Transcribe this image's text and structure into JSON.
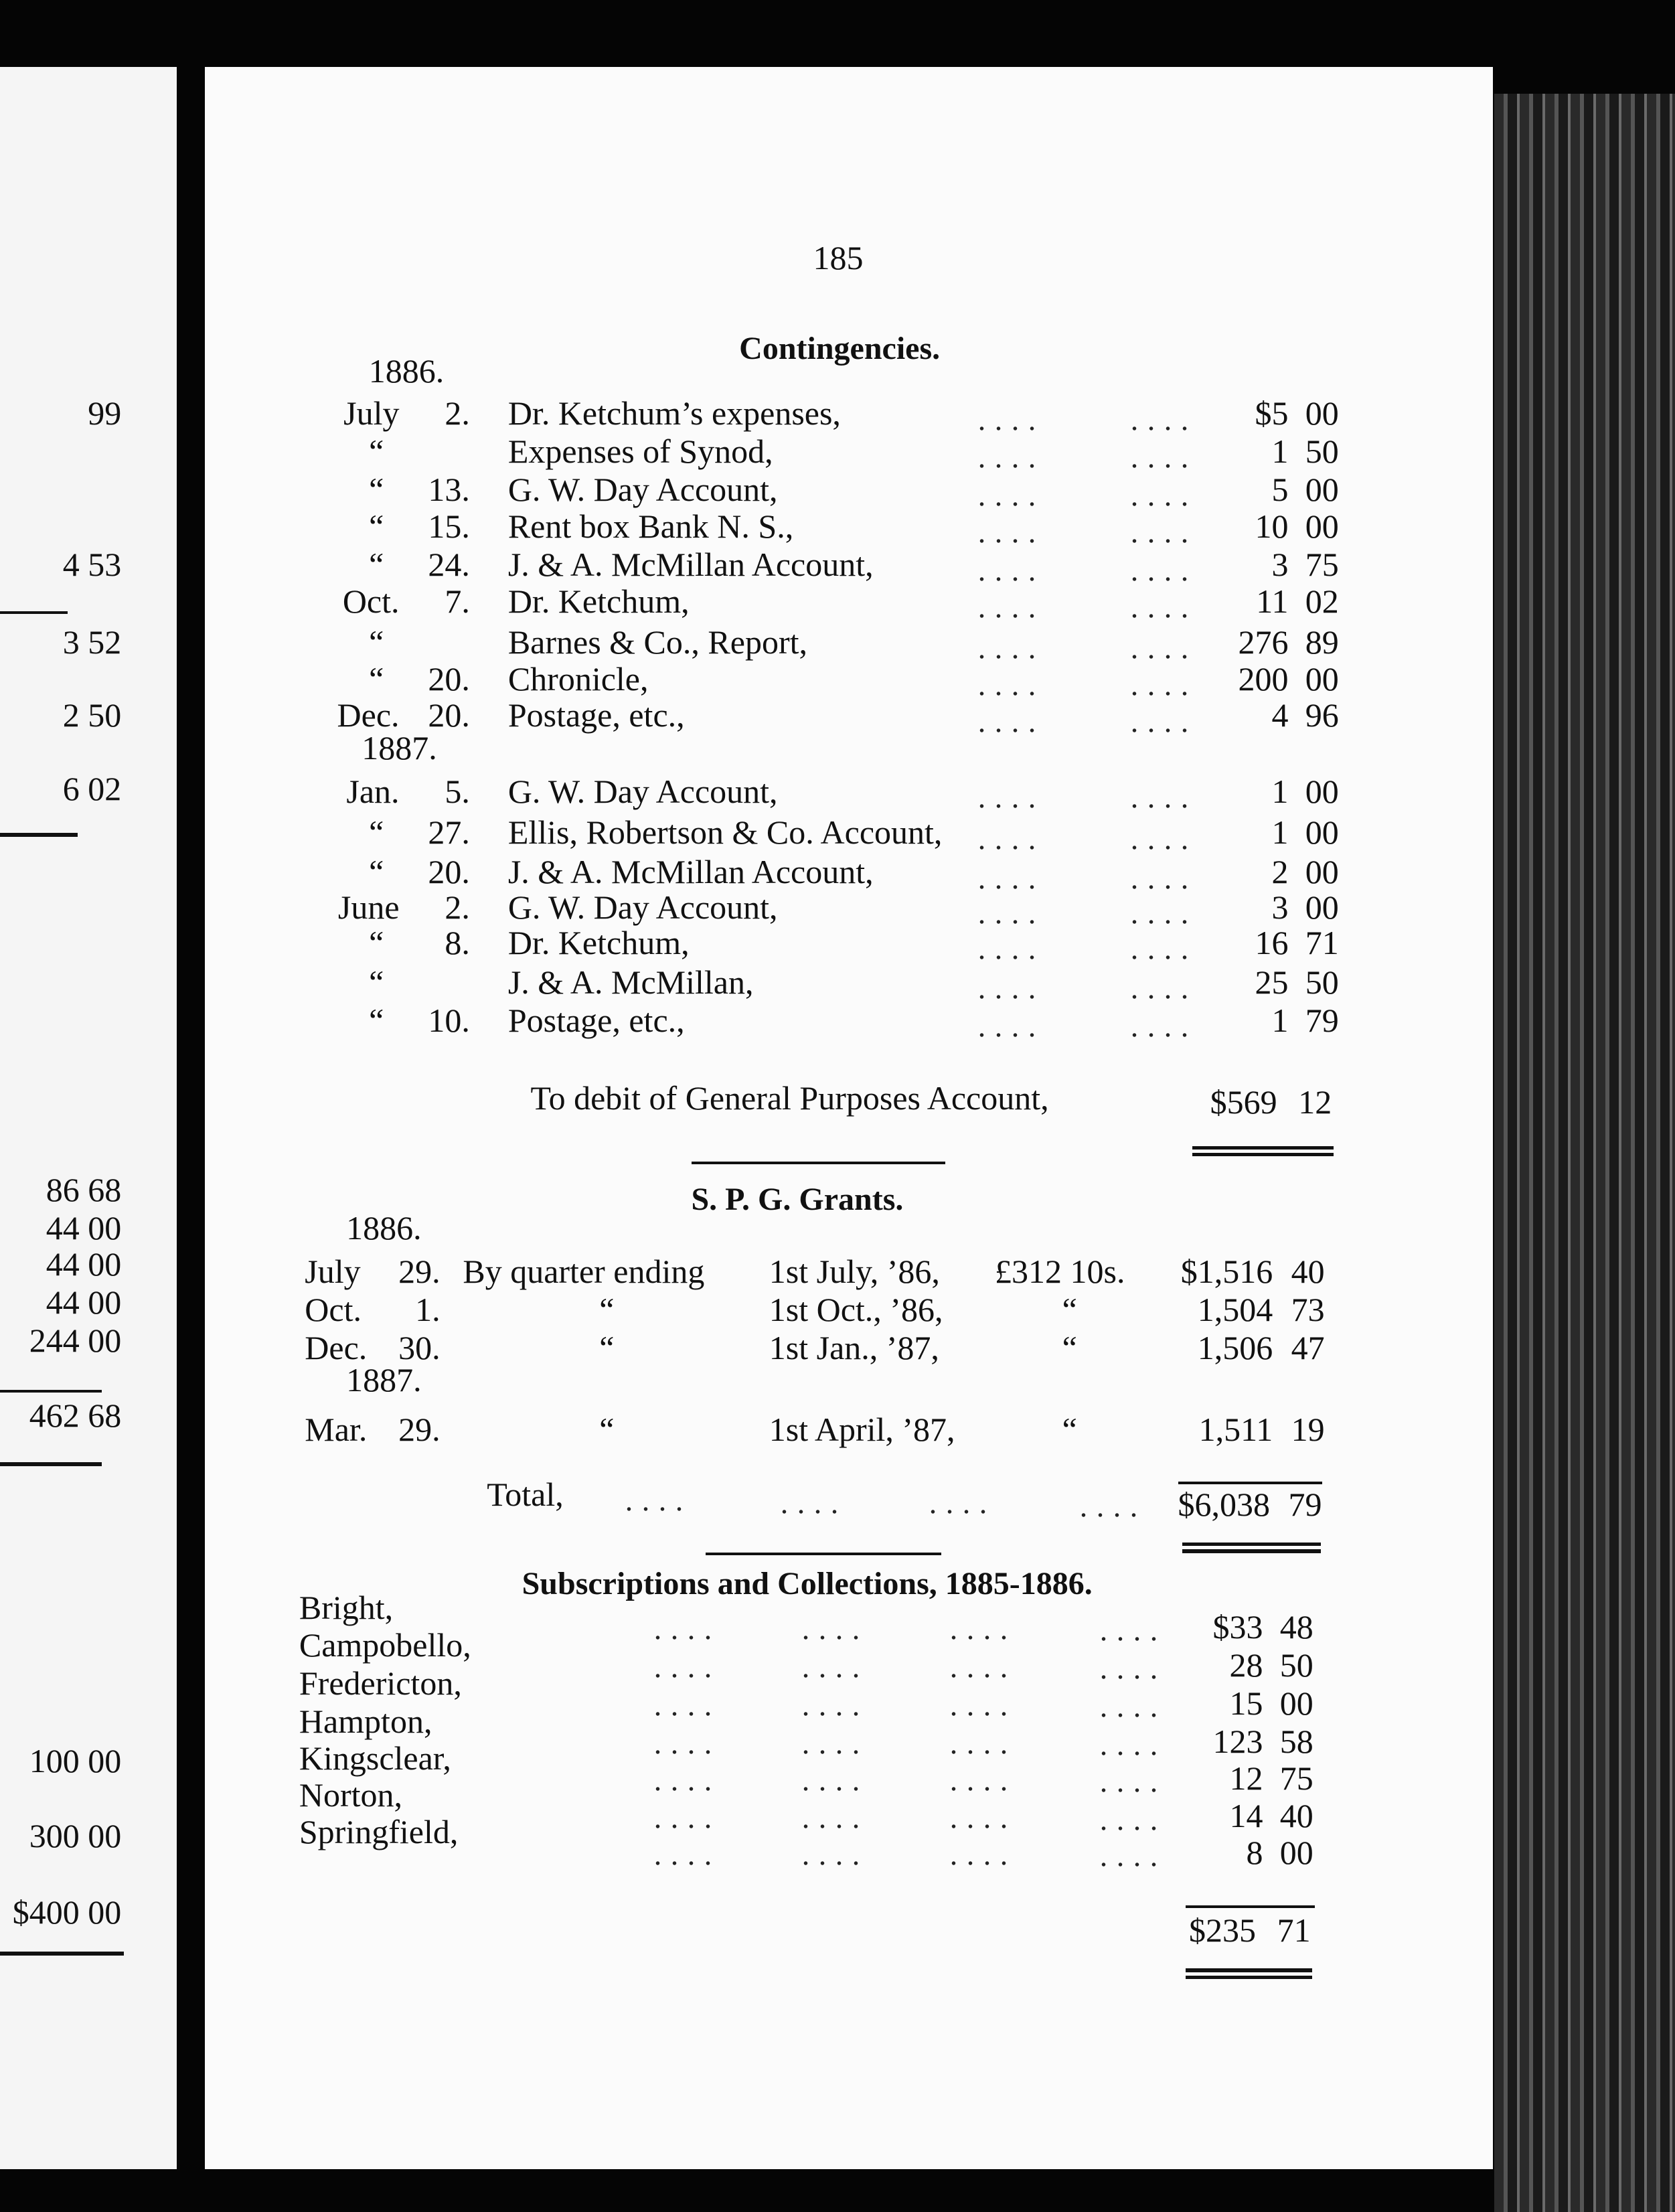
{
  "left_page": {
    "amounts": [
      "99",
      "4 53",
      "3 52",
      "2 50",
      "6 02",
      "86 68",
      "44 00",
      "44 00",
      "44 00",
      "244 00",
      "462 68",
      "100 00",
      "300 00",
      "$400 00"
    ]
  },
  "header": {
    "page_number": "185"
  },
  "contingencies": {
    "title": "Contingencies.",
    "years": [
      "1886.",
      "1887."
    ],
    "rows": [
      {
        "month": "July",
        "day": "2.",
        "description": "Dr. Ketchum’s expenses,",
        "dollars": "$5",
        "cents": "00"
      },
      {
        "month": "“",
        "day": null,
        "description": "Expenses of Synod,",
        "dollars": "1",
        "cents": "50"
      },
      {
        "month": "“",
        "day": "13.",
        "description": "G. W. Day Account,",
        "dollars": "5",
        "cents": "00"
      },
      {
        "month": "“",
        "day": "15.",
        "description": "Rent box Bank N. S.,",
        "dollars": "10",
        "cents": "00"
      },
      {
        "month": "“",
        "day": "24.",
        "description": "J. & A. McMillan Account,",
        "dollars": "3",
        "cents": "75"
      },
      {
        "month": "Oct.",
        "day": "7.",
        "description": "Dr. Ketchum,",
        "dollars": "11",
        "cents": "02"
      },
      {
        "month": "“",
        "day": null,
        "description": "Barnes & Co., Report,",
        "dollars": "276",
        "cents": "89"
      },
      {
        "month": "“",
        "day": "20.",
        "description": "Chronicle,",
        "dollars": "200",
        "cents": "00"
      },
      {
        "month": "Dec.",
        "day": "20.",
        "description": "Postage, etc.,",
        "dollars": "4",
        "cents": "96"
      },
      {
        "month": "Jan.",
        "day": "5.",
        "description": "G. W. Day Account,",
        "dollars": "1",
        "cents": "00"
      },
      {
        "month": "“",
        "day": "27.",
        "description": "Ellis, Robertson & Co. Account,",
        "dollars": "1",
        "cents": "00"
      },
      {
        "month": "“",
        "day": "20.",
        "description": "J. & A. McMillan Account,",
        "dollars": "2",
        "cents": "00"
      },
      {
        "month": "June",
        "day": "2.",
        "description": "G. W. Day Account,",
        "dollars": "3",
        "cents": "00"
      },
      {
        "month": "“",
        "day": "8.",
        "description": "Dr. Ketchum,",
        "dollars": "16",
        "cents": "71"
      },
      {
        "month": "“",
        "day": null,
        "description": "J. & A. McMillan,",
        "dollars": "25",
        "cents": "50"
      },
      {
        "month": "“",
        "day": "10.",
        "description": "Postage, etc.,",
        "dollars": "1",
        "cents": "79"
      }
    ],
    "total": {
      "label": "To debit of General Purposes Account,",
      "dollars": "$569",
      "cents": "12"
    }
  },
  "spg_grants": {
    "title": "S. P. G. Grants.",
    "years": [
      "1886.",
      "1887."
    ],
    "rows": [
      {
        "month": "July",
        "day": "29.",
        "description": "By quarter ending",
        "period": "1st July, ’86,",
        "sterling": "£312 10s.",
        "dollars": "$1,516",
        "cents": "40"
      },
      {
        "month": "Oct.",
        "day": "1.",
        "description": "“",
        "period": "1st Oct., ’86,",
        "sterling": "“",
        "dollars": "1,504",
        "cents": "73"
      },
      {
        "month": "Dec.",
        "day": "30.",
        "description": "“",
        "period": "1st Jan., ’87,",
        "sterling": "“",
        "dollars": "1,506",
        "cents": "47"
      },
      {
        "month": "Mar.",
        "day": "29.",
        "description": "“",
        "period": "1st April, ’87,",
        "sterling": "“",
        "dollars": "1,511",
        "cents": "19"
      }
    ],
    "total": {
      "label": "Total,",
      "dollars": "$6,038",
      "cents": "79"
    }
  },
  "subscriptions": {
    "title": "Subscriptions and Collections, 1885-1886.",
    "rows": [
      {
        "name": "Bright,",
        "dollars": "$33",
        "cents": "48"
      },
      {
        "name": "Campobello,",
        "dollars": "28",
        "cents": "50"
      },
      {
        "name": "Fredericton,",
        "dollars": "15",
        "cents": "00"
      },
      {
        "name": "Hampton,",
        "dollars": "123",
        "cents": "58"
      },
      {
        "name": "Kingsclear,",
        "dollars": "12",
        "cents": "75"
      },
      {
        "name": "Norton,",
        "dollars": "14",
        "cents": "40"
      },
      {
        "name": "Springfield,",
        "dollars": "8",
        "cents": "00"
      }
    ],
    "total": {
      "dollars": "$235",
      "cents": "71"
    }
  }
}
